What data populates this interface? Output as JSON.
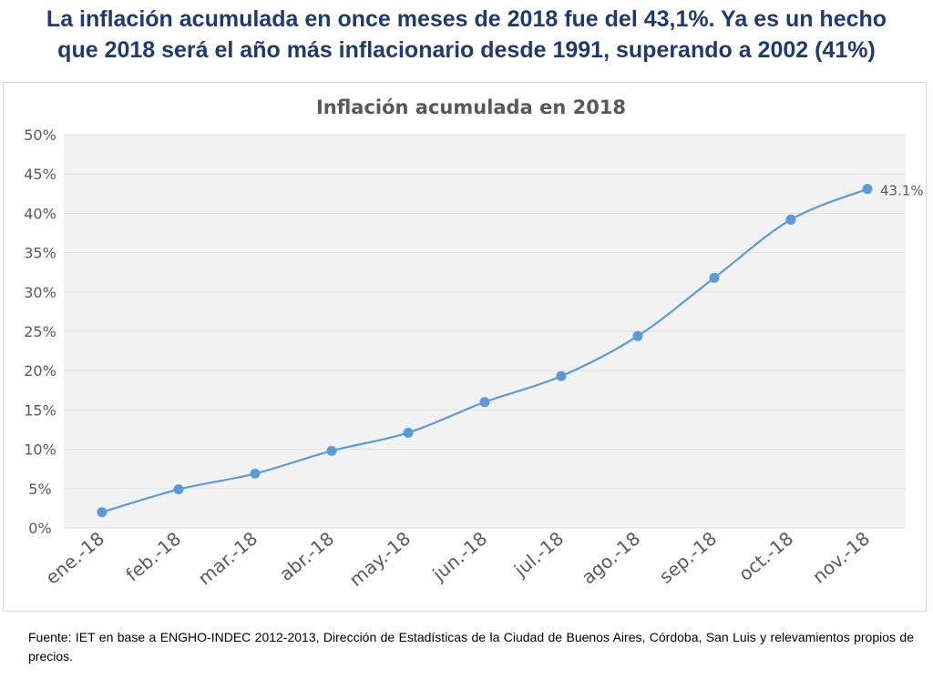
{
  "headline": {
    "line1": "La inflación acumulada en once meses de 2018 fue del 43,1%. Ya es un hecho",
    "line2": "que 2018 será el año más inflacionario desde 1991, superando a 2002 (41%)"
  },
  "source": "Fuente: IET en base a ENGHO-INDEC 2012-2013, Dirección de Estadísticas de la Ciudad de Buenos Aires, Córdoba, San Luis y relevamientos propios de precios.",
  "colors": {
    "headline": "#1f3a6e",
    "line": "#5b9bd5",
    "marker": "#5b9bd5",
    "grid": "#e3e3e3",
    "plot_bg": "#f2f2f2",
    "text": "#595959"
  },
  "chart_data": {
    "type": "line",
    "title": "Inflación acumulada en 2018",
    "categories": [
      "ene.-18",
      "feb.-18",
      "mar.-18",
      "abr.-18",
      "may.-18",
      "jun.-18",
      "jul.-18",
      "ago.-18",
      "sep.-18",
      "oct.-18",
      "nov.-18"
    ],
    "series": [
      {
        "name": "Inflación acumulada",
        "values": [
          2.0,
          4.9,
          6.9,
          9.8,
          12.1,
          16.0,
          19.3,
          24.4,
          31.8,
          39.2,
          43.1
        ]
      }
    ],
    "y_ticks": [
      "0%",
      "5%",
      "10%",
      "15%",
      "20%",
      "25%",
      "30%",
      "35%",
      "40%",
      "45%",
      "50%"
    ],
    "ylim": [
      0,
      50
    ],
    "data_label": {
      "index": 10,
      "text": "43.1%"
    },
    "xlabel": "",
    "ylabel": "",
    "grid": true,
    "smooth": true
  }
}
